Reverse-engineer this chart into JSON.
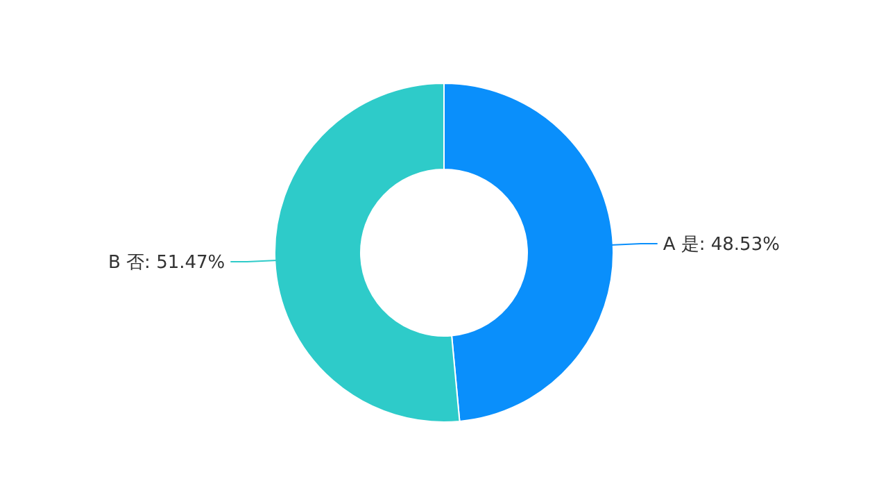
{
  "chart_data": {
    "type": "donut",
    "categories": [
      "A 是",
      "B 否"
    ],
    "values": [
      48.53,
      51.47
    ],
    "colors": [
      "#0a8ffb",
      "#2ecbc9"
    ],
    "value_labels": [
      "48.53%",
      "51.47%"
    ]
  }
}
